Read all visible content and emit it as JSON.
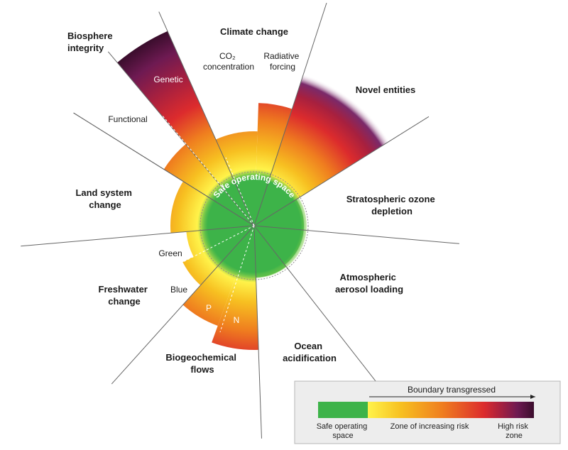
{
  "colors": {
    "safe": "#3db349",
    "zone_stops": [
      "#fff34a",
      "#f7c021",
      "#ef7d1f",
      "#dc2b2d",
      "#a7203f",
      "#6e1a52",
      "#3a0d2c"
    ],
    "divider": "#666666"
  },
  "center_label": "Safe operating space",
  "boundaries": [
    {
      "key": "climate",
      "title": [
        "Climate change"
      ]
    },
    {
      "key": "novel",
      "title": [
        "Novel entities"
      ]
    },
    {
      "key": "ozone",
      "title": [
        "Stratospheric ozone",
        "depletion"
      ]
    },
    {
      "key": "aerosol",
      "title": [
        "Atmospheric",
        "aerosol loading"
      ]
    },
    {
      "key": "ocean",
      "title": [
        "Ocean",
        "acidification"
      ]
    },
    {
      "key": "biogeo",
      "title": [
        "Biogeochemical",
        "flows"
      ]
    },
    {
      "key": "freshwater",
      "title": [
        "Freshwater",
        "change"
      ]
    },
    {
      "key": "land",
      "title": [
        "Land system",
        "change"
      ]
    },
    {
      "key": "biosphere",
      "title": [
        "Biosphere",
        "integrity"
      ]
    }
  ],
  "sub_labels": {
    "co2": [
      "CO₂",
      "concentration"
    ],
    "radiative": [
      "Radiative",
      "forcing"
    ],
    "genetic": "Genetic",
    "functional": "Functional",
    "green": "Green",
    "blue": "Blue",
    "p": "P",
    "n": "N"
  },
  "legend": {
    "arrow_label": "Boundary transgressed",
    "safe": [
      "Safe operating",
      "space"
    ],
    "zone": "Zone of increasing risk",
    "high": [
      "High risk",
      "zone"
    ]
  }
}
